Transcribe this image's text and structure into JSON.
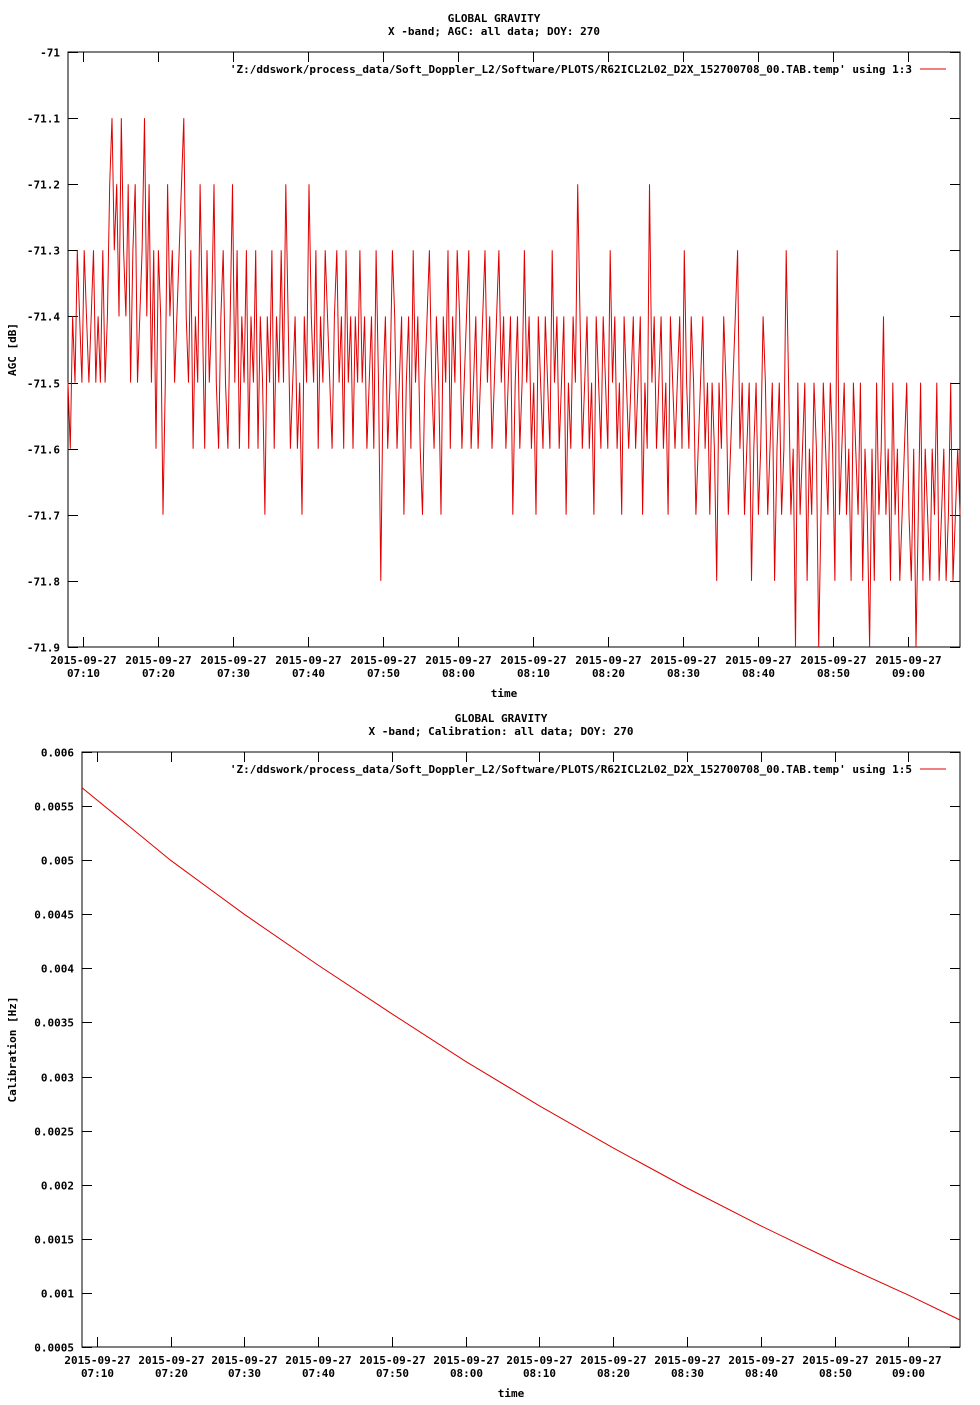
{
  "colors": {
    "series": "#e00000",
    "axis": "#000000",
    "background": "#ffffff"
  },
  "chart_data": [
    {
      "type": "line",
      "title": "GLOBAL GRAVITY",
      "subtitle": "X -band; AGC: all data; DOY: 270",
      "xlabel": "time",
      "ylabel": "AGC [dB]",
      "ylim": [
        -71.9,
        -71.0
      ],
      "y_ticks": [
        "-71",
        "-71.1",
        "-71.2",
        "-71.3",
        "-71.4",
        "-71.5",
        "-71.6",
        "-71.7",
        "-71.8",
        "-71.9"
      ],
      "x_tick_dates": [
        "2015-09-27",
        "2015-09-27",
        "2015-09-27",
        "2015-09-27",
        "2015-09-27",
        "2015-09-27",
        "2015-09-27",
        "2015-09-27",
        "2015-09-27",
        "2015-09-27",
        "2015-09-27",
        "2015-09-27"
      ],
      "x_tick_times": [
        "07:10",
        "07:20",
        "07:30",
        "07:40",
        "07:50",
        "08:00",
        "08:10",
        "08:20",
        "08:30",
        "08:40",
        "08:50",
        "09:00"
      ],
      "x_range": [
        "2015-09-27 07:08",
        "2015-09-27 09:07"
      ],
      "grid": false,
      "legend_position": "top-right",
      "series": [
        {
          "name": "'Z:/ddswork/process_data/Soft_Doppler_L2/Software/PLOTS/R62ICL2L02_D2X_152700708_00.TAB.temp' using 1:3",
          "x_start": "2015-09-27 07:08",
          "x_end": "2015-09-27 09:07",
          "values": [
            -71.5,
            -71.6,
            -71.4,
            -71.5,
            -71.3,
            -71.4,
            -71.5,
            -71.3,
            -71.4,
            -71.5,
            -71.4,
            -71.3,
            -71.5,
            -71.4,
            -71.5,
            -71.3,
            -71.5,
            -71.4,
            -71.2,
            -71.1,
            -71.3,
            -71.2,
            -71.4,
            -71.1,
            -71.3,
            -71.4,
            -71.2,
            -71.5,
            -71.3,
            -71.2,
            -71.5,
            -71.4,
            -71.3,
            -71.1,
            -71.4,
            -71.2,
            -71.5,
            -71.3,
            -71.6,
            -71.3,
            -71.4,
            -71.7,
            -71.5,
            -71.2,
            -71.4,
            -71.3,
            -71.5,
            -71.4,
            -71.3,
            -71.2,
            -71.1,
            -71.4,
            -71.5,
            -71.3,
            -71.6,
            -71.4,
            -71.5,
            -71.2,
            -71.4,
            -71.6,
            -71.3,
            -71.5,
            -71.4,
            -71.2,
            -71.5,
            -71.6,
            -71.4,
            -71.3,
            -71.5,
            -71.6,
            -71.4,
            -71.2,
            -71.5,
            -71.3,
            -71.6,
            -71.4,
            -71.5,
            -71.3,
            -71.6,
            -71.4,
            -71.5,
            -71.3,
            -71.6,
            -71.4,
            -71.5,
            -71.7,
            -71.4,
            -71.5,
            -71.3,
            -71.6,
            -71.4,
            -71.5,
            -71.3,
            -71.5,
            -71.2,
            -71.4,
            -71.6,
            -71.5,
            -71.4,
            -71.6,
            -71.5,
            -71.7,
            -71.4,
            -71.5,
            -71.2,
            -71.4,
            -71.5,
            -71.3,
            -71.6,
            -71.4,
            -71.5,
            -71.3,
            -71.4,
            -71.5,
            -71.6,
            -71.4,
            -71.3,
            -71.5,
            -71.4,
            -71.6,
            -71.3,
            -71.5,
            -71.4,
            -71.6,
            -71.4,
            -71.5,
            -71.3,
            -71.5,
            -71.4,
            -71.6,
            -71.5,
            -71.4,
            -71.6,
            -71.3,
            -71.5,
            -71.8,
            -71.5,
            -71.4,
            -71.6,
            -71.5,
            -71.3,
            -71.4,
            -71.6,
            -71.5,
            -71.4,
            -71.7,
            -71.5,
            -71.4,
            -71.6,
            -71.3,
            -71.5,
            -71.4,
            -71.6,
            -71.7,
            -71.5,
            -71.4,
            -71.3,
            -71.5,
            -71.6,
            -71.4,
            -71.5,
            -71.7,
            -71.4,
            -71.5,
            -71.3,
            -71.6,
            -71.4,
            -71.5,
            -71.3,
            -71.4,
            -71.6,
            -71.5,
            -71.4,
            -71.3,
            -71.6,
            -71.5,
            -71.4,
            -71.6,
            -71.5,
            -71.4,
            -71.3,
            -71.5,
            -71.4,
            -71.6,
            -71.5,
            -71.4,
            -71.3,
            -71.5,
            -71.4,
            -71.6,
            -71.5,
            -71.4,
            -71.7,
            -71.5,
            -71.4,
            -71.6,
            -71.5,
            -71.3,
            -71.5,
            -71.4,
            -71.6,
            -71.5,
            -71.7,
            -71.4,
            -71.5,
            -71.6,
            -71.4,
            -71.5,
            -71.6,
            -71.3,
            -71.5,
            -71.4,
            -71.6,
            -71.5,
            -71.4,
            -71.7,
            -71.5,
            -71.6,
            -71.4,
            -71.5,
            -71.2,
            -71.4,
            -71.6,
            -71.5,
            -71.4,
            -71.6,
            -71.5,
            -71.7,
            -71.4,
            -71.5,
            -71.6,
            -71.4,
            -71.5,
            -71.6,
            -71.3,
            -71.5,
            -71.4,
            -71.6,
            -71.5,
            -71.7,
            -71.4,
            -71.5,
            -71.6,
            -71.5,
            -71.4,
            -71.6,
            -71.5,
            -71.4,
            -71.7,
            -71.5,
            -71.6,
            -71.2,
            -71.5,
            -71.4,
            -71.6,
            -71.5,
            -71.4,
            -71.6,
            -71.5,
            -71.7,
            -71.4,
            -71.5,
            -71.6,
            -71.5,
            -71.4,
            -71.6,
            -71.3,
            -71.5,
            -71.6,
            -71.4,
            -71.5,
            -71.7,
            -71.6,
            -71.5,
            -71.4,
            -71.6,
            -71.5,
            -71.7,
            -71.5,
            -71.6,
            -71.8,
            -71.5,
            -71.6,
            -71.4,
            -71.5,
            -71.7,
            -71.6,
            -71.5,
            -71.4,
            -71.3,
            -71.6,
            -71.5,
            -71.7,
            -71.6,
            -71.5,
            -71.8,
            -71.6,
            -71.5,
            -71.7,
            -71.6,
            -71.4,
            -71.5,
            -71.7,
            -71.6,
            -71.5,
            -71.8,
            -71.6,
            -71.5,
            -71.7,
            -71.6,
            -71.3,
            -71.5,
            -71.7,
            -71.6,
            -71.9,
            -71.5,
            -71.7,
            -71.6,
            -71.5,
            -71.8,
            -71.6,
            -71.7,
            -71.5,
            -71.6,
            -71.9,
            -71.7,
            -71.5,
            -71.6,
            -71.7,
            -71.5,
            -71.6,
            -71.8,
            -71.3,
            -71.7,
            -71.6,
            -71.5,
            -71.7,
            -71.6,
            -71.8,
            -71.5,
            -71.6,
            -71.7,
            -71.5,
            -71.8,
            -71.6,
            -71.7,
            -71.9,
            -71.6,
            -71.8,
            -71.5,
            -71.7,
            -71.6,
            -71.4,
            -71.7,
            -71.6,
            -71.8,
            -71.5,
            -71.7,
            -71.6,
            -71.8,
            -71.7,
            -71.6,
            -71.5,
            -71.7,
            -71.8,
            -71.6,
            -71.9,
            -71.7,
            -71.5,
            -71.8,
            -71.6,
            -71.7,
            -71.8,
            -71.6,
            -71.7,
            -71.5,
            -71.8,
            -71.7,
            -71.6,
            -71.8,
            -71.7,
            -71.5,
            -71.8,
            -71.7,
            -71.6,
            -71.7
          ]
        }
      ]
    },
    {
      "type": "line",
      "title": "GLOBAL GRAVITY",
      "subtitle": "X -band; Calibration: all data; DOY: 270",
      "xlabel": "time",
      "ylabel": "Calibration [Hz]",
      "ylim": [
        0.0005,
        0.006
      ],
      "y_ticks": [
        "0.006",
        "0.0055",
        "0.005",
        "0.0045",
        "0.004",
        "0.0035",
        "0.003",
        "0.0025",
        "0.002",
        "0.0015",
        "0.001",
        "0.0005"
      ],
      "x_tick_dates": [
        "2015-09-27",
        "2015-09-27",
        "2015-09-27",
        "2015-09-27",
        "2015-09-27",
        "2015-09-27",
        "2015-09-27",
        "2015-09-27",
        "2015-09-27",
        "2015-09-27",
        "2015-09-27",
        "2015-09-27"
      ],
      "x_tick_times": [
        "07:10",
        "07:20",
        "07:30",
        "07:40",
        "07:50",
        "08:00",
        "08:10",
        "08:20",
        "08:30",
        "08:40",
        "08:50",
        "09:00"
      ],
      "x_range": [
        "2015-09-27 07:08",
        "2015-09-27 09:07"
      ],
      "grid": false,
      "legend_position": "top-right",
      "series": [
        {
          "name": "'Z:/ddswork/process_data/Soft_Doppler_L2/Software/PLOTS/R62ICL2L02_D2X_152700708_00.TAB.temp' using 1:5",
          "x": [
            "2015-09-27 07:08",
            "2015-09-27 07:15",
            "2015-09-27 07:20",
            "2015-09-27 07:30",
            "2015-09-27 07:40",
            "2015-09-27 07:50",
            "2015-09-27 08:00",
            "2015-09-27 08:10",
            "2015-09-27 08:20",
            "2015-09-27 08:30",
            "2015-09-27 08:40",
            "2015-09-27 08:50",
            "2015-09-27 09:00",
            "2015-09-27 09:07"
          ],
          "values": [
            0.00567,
            0.00528,
            0.005,
            0.0045,
            0.00403,
            0.00358,
            0.00314,
            0.00273,
            0.00234,
            0.00197,
            0.00162,
            0.00129,
            0.00098,
            0.00075
          ]
        }
      ]
    }
  ]
}
